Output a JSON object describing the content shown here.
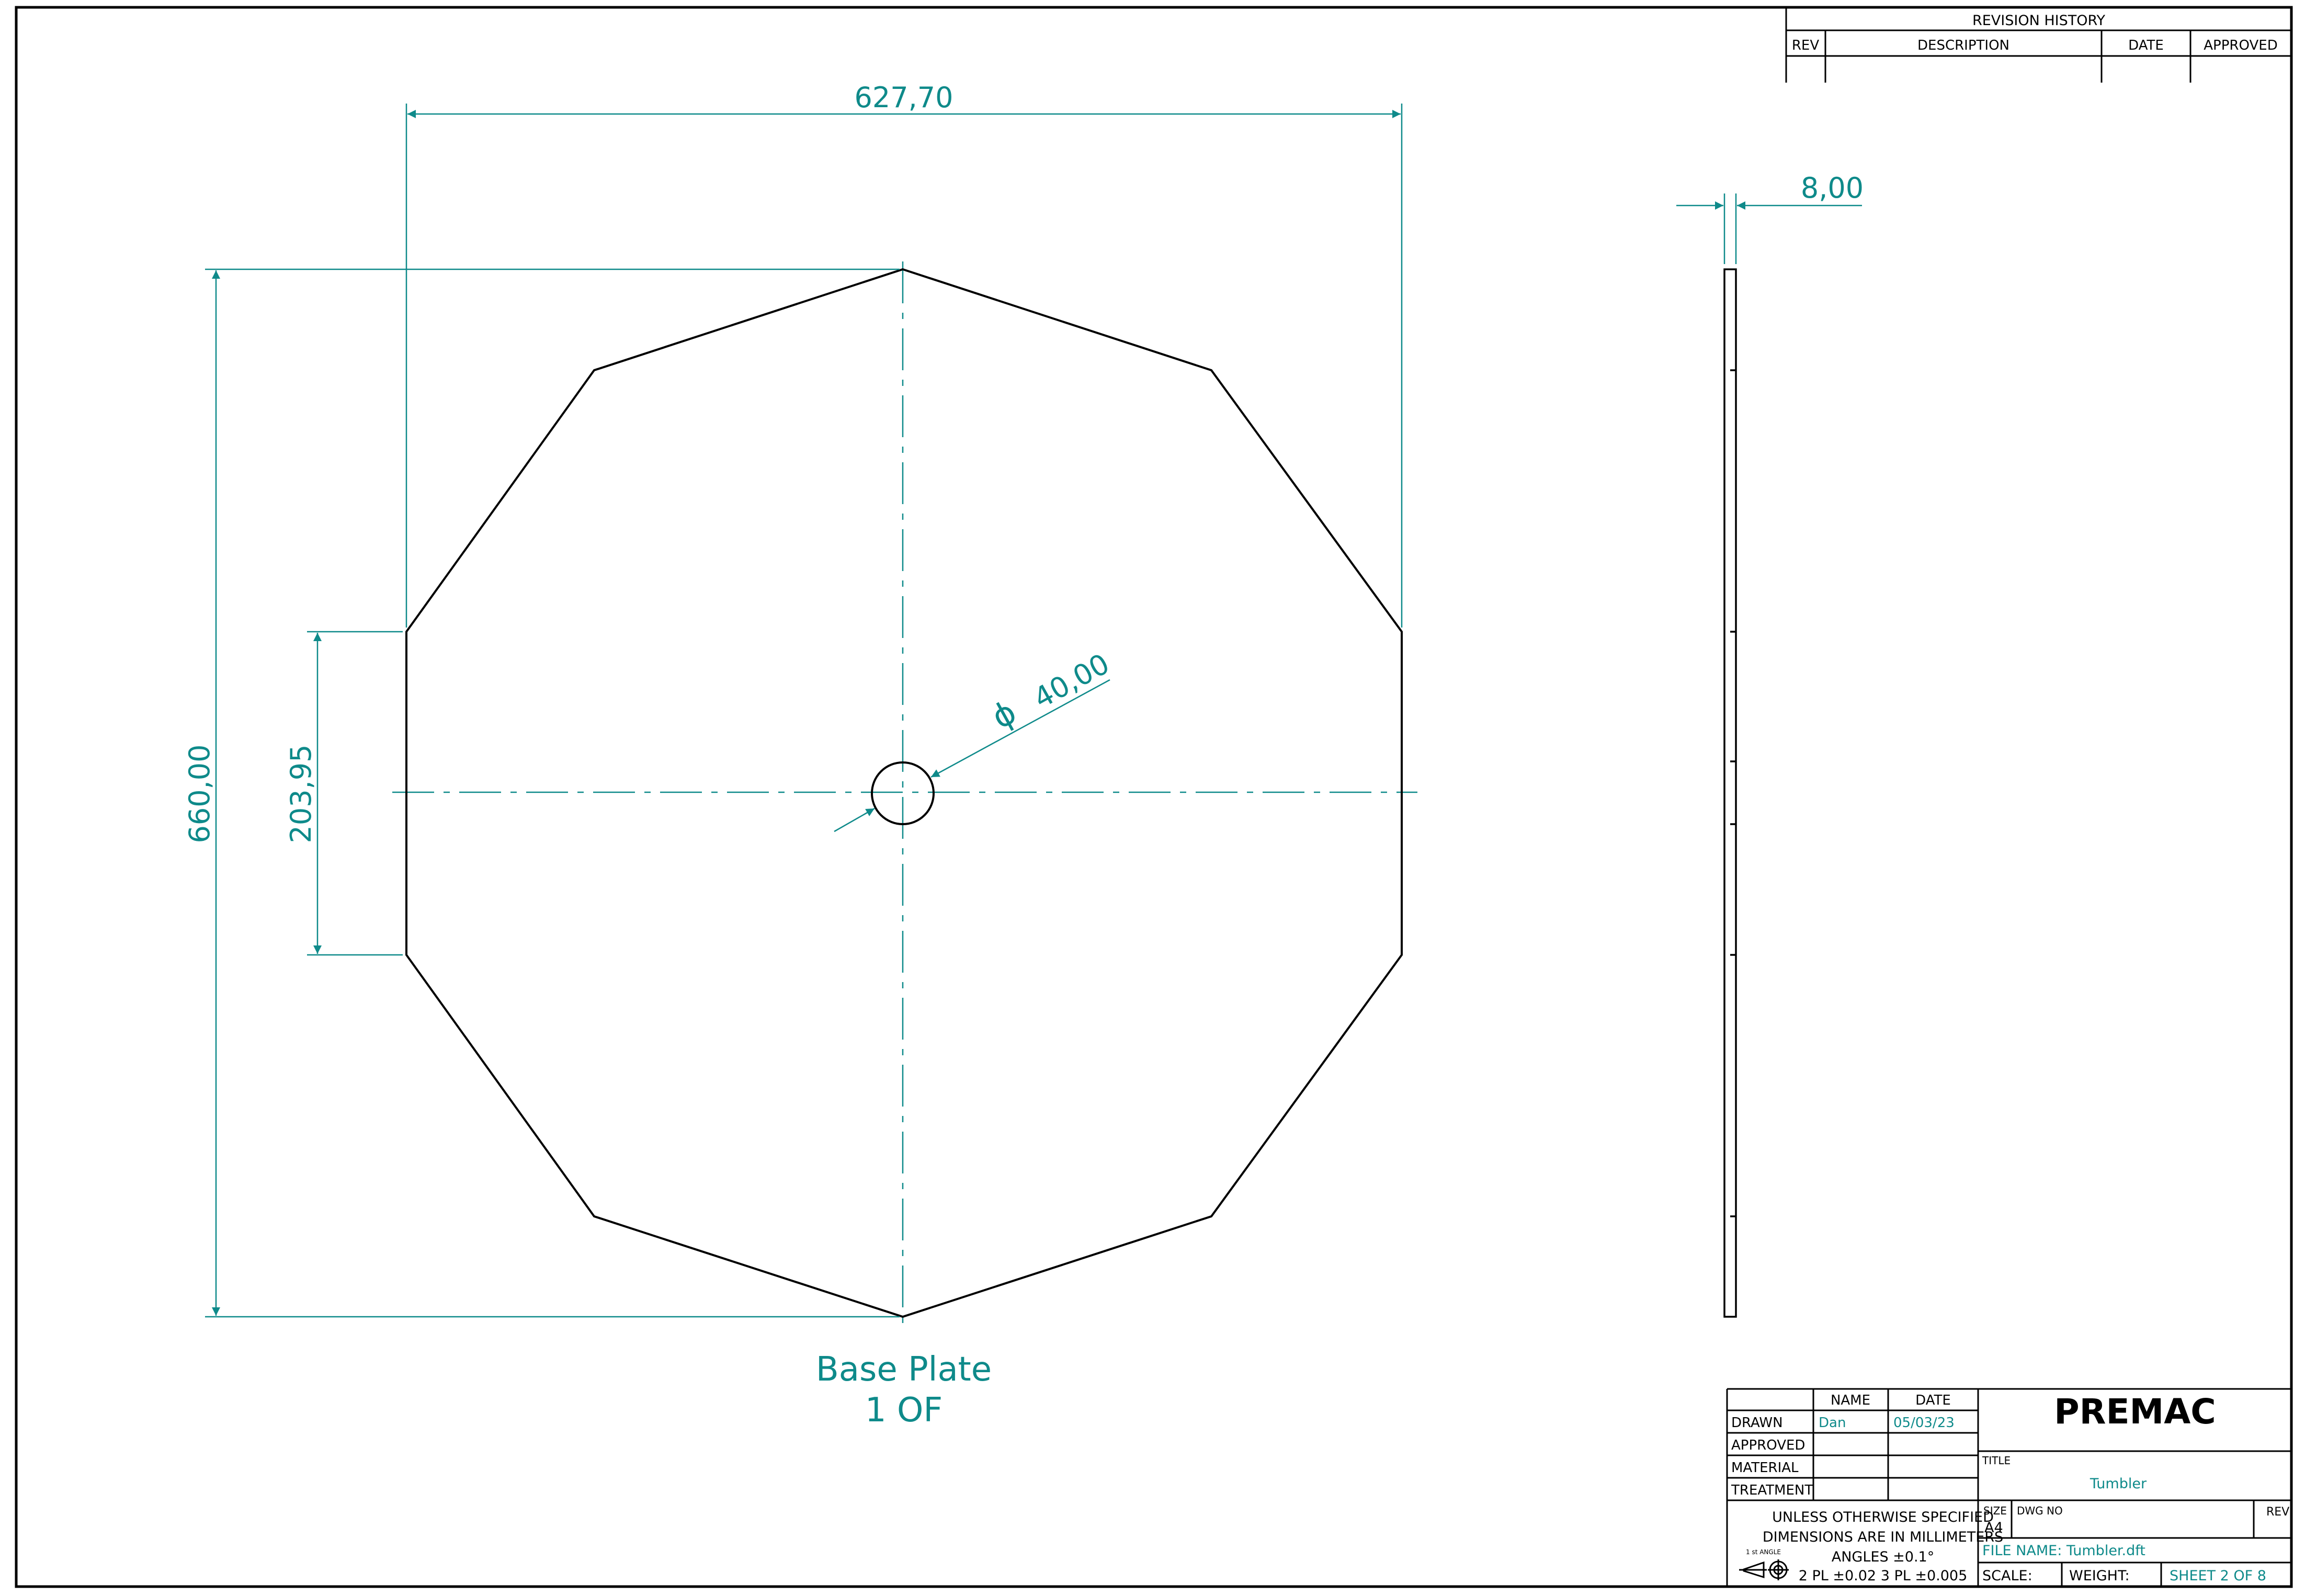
{
  "colors": {
    "dimension": "#0e8a8a",
    "outline": "#000000",
    "background": "#ffffff"
  },
  "revision_history": {
    "heading": "REVISION HISTORY",
    "columns": [
      "REV",
      "DESCRIPTION",
      "DATE",
      "APPROVED"
    ]
  },
  "front_view": {
    "width_dim": "627,70",
    "height_dim": "660,00",
    "flat_dim": "203,95",
    "hole_dim": "40,00",
    "hole_symbol": "ϕ",
    "view_name": "Base Plate",
    "view_sub": "1 OF"
  },
  "side_view": {
    "thickness_dim": "8,00"
  },
  "title_block": {
    "company": "PREMAC",
    "headers": {
      "name": "NAME",
      "date": "DATE"
    },
    "rows": [
      {
        "label": "DRAWN",
        "name": "Dan",
        "date": "05/03/23"
      },
      {
        "label": "APPROVED",
        "name": "",
        "date": ""
      },
      {
        "label": "MATERIAL",
        "name": "",
        "date": ""
      },
      {
        "label": "TREATMENT",
        "name": "",
        "date": ""
      }
    ],
    "notes": [
      "UNLESS OTHERWISE SPECIFIED",
      "DIMENSIONS ARE IN MILLIMETERS",
      "ANGLES ±0.1°",
      "2 PL ±0.02   3 PL ±0.005"
    ],
    "projection_label": "1 st ANGLE",
    "title_label": "TITLE",
    "title_value": "Tumbler",
    "size_label": "SIZE",
    "size_value": "A4",
    "dwg_no_label": "DWG NO",
    "rev_label": "REV",
    "file_name": "FILE NAME: Tumbler.dft",
    "scale_label": "SCALE:",
    "weight_label": "WEIGHT:",
    "sheet": "SHEET 2 OF 8"
  }
}
